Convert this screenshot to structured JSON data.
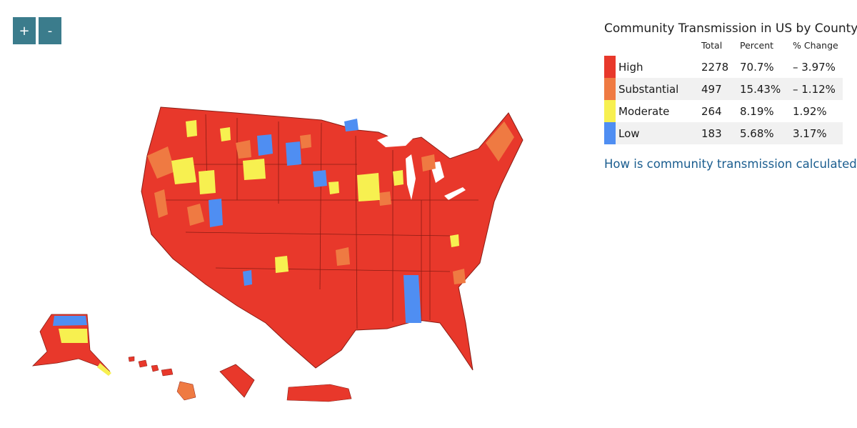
{
  "zoom": {
    "in_label": "+",
    "out_label": "-"
  },
  "legend": {
    "title": "Community Transmission in US by County",
    "columns": {
      "total": "Total",
      "percent": "Percent",
      "change": "% Change"
    },
    "rows": [
      {
        "label": "High",
        "total": "2278",
        "percent": "70.7%",
        "change": "– 3.97%",
        "color": "#e8382b"
      },
      {
        "label": "Substantial",
        "total": "497",
        "percent": "15.43%",
        "change": "– 1.12%",
        "color": "#ef7a42"
      },
      {
        "label": "Moderate",
        "total": "264",
        "percent": "8.19%",
        "change": "1.92%",
        "color": "#f7f050"
      },
      {
        "label": "Low",
        "total": "183",
        "percent": "5.68%",
        "change": "3.17%",
        "color": "#4f8ef2"
      }
    ]
  },
  "link_text": "How is community transmission calculated?",
  "map_colors": {
    "high": "#e8382b",
    "substantial": "#ef7a42",
    "moderate": "#f7f050",
    "low": "#4f8ef2"
  }
}
